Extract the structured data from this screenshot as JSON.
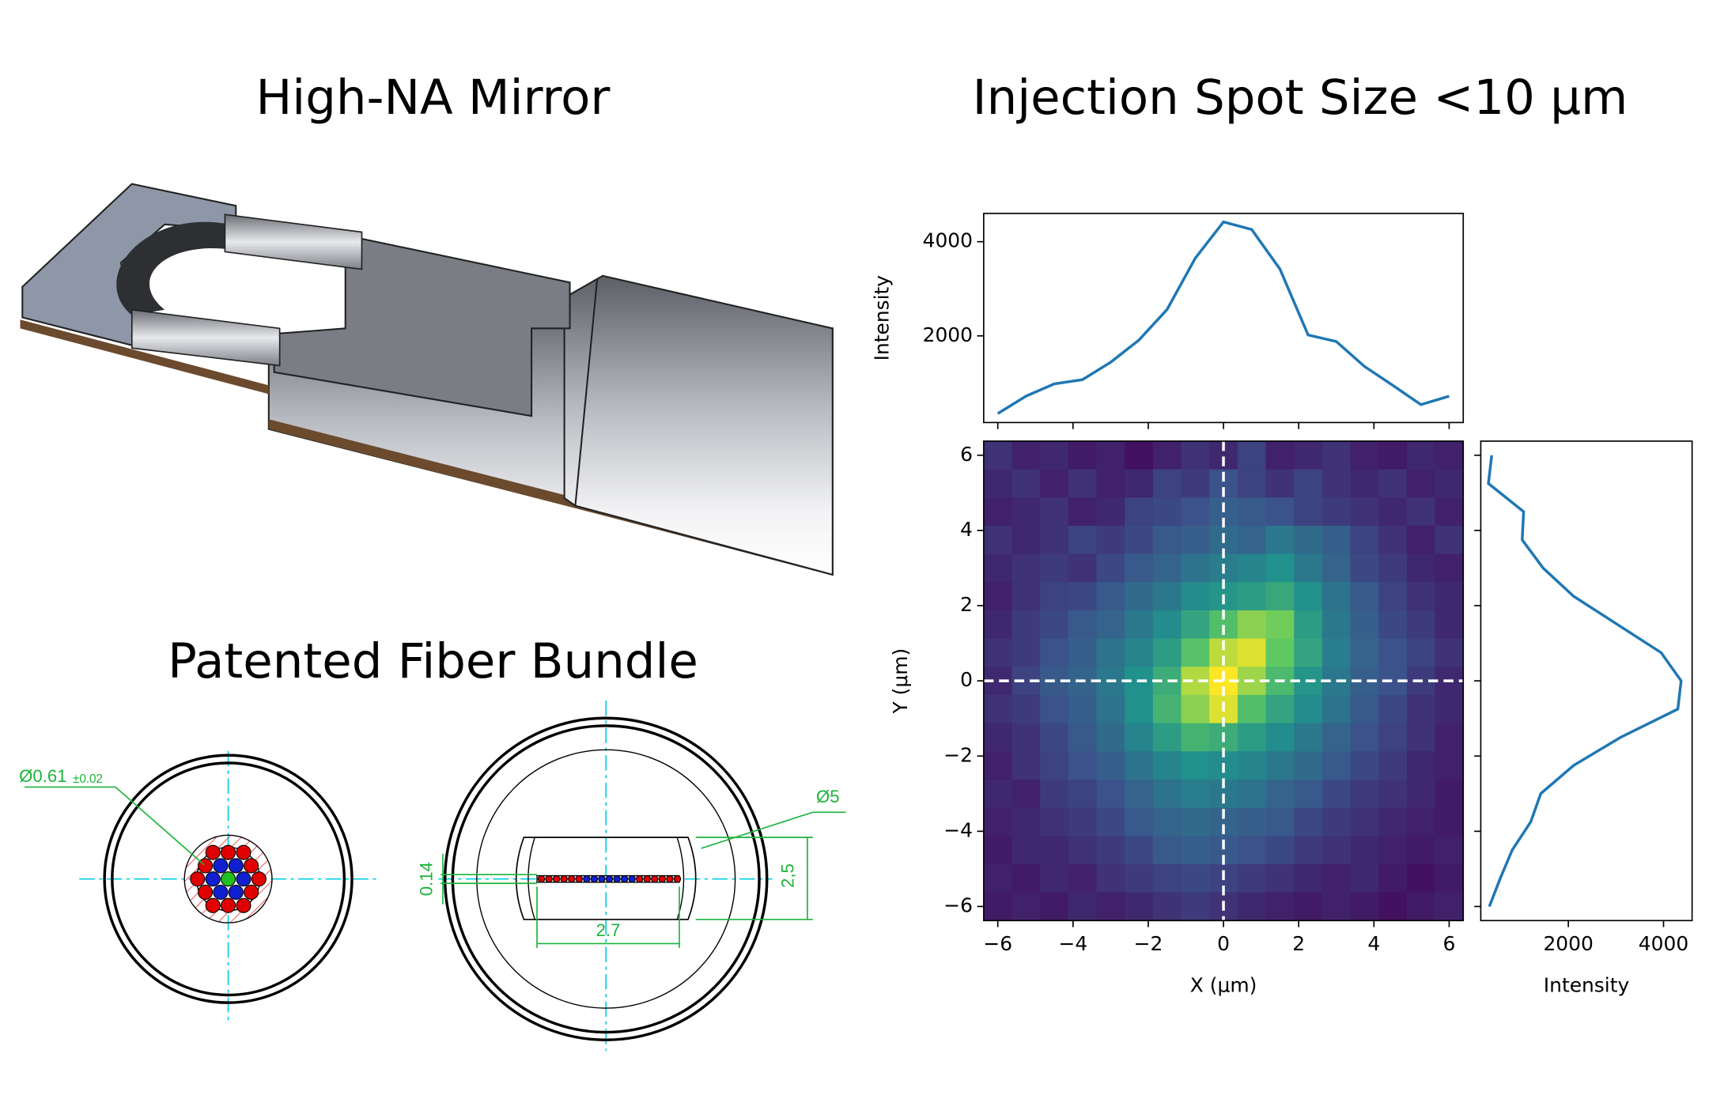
{
  "figure": {
    "titles": [
      "High-NA Mirror",
      "Injection Spot Size <10 μm",
      "Patented Fiber Bundle"
    ],
    "drawing_labels": {
      "diameter_small": "Ø0.61",
      "tolerance": "±0.02",
      "diameter_large": "Ø5",
      "slot_height": "0.14",
      "height": "2,5",
      "width": "2.7"
    }
  },
  "chart_data": [
    {
      "type": "line",
      "ylabel": "Intensity",
      "x": [
        -6,
        -5.25,
        -4.5,
        -3.75,
        -3,
        -2.25,
        -1.5,
        -0.75,
        0,
        0.75,
        1.5,
        2.25,
        3,
        3.75,
        4.5,
        5.25,
        6
      ],
      "values": [
        350,
        720,
        980,
        1070,
        1440,
        1910,
        2560,
        3650,
        4420,
        4260,
        3420,
        2020,
        1880,
        1350,
        950,
        540,
        720
      ],
      "color": "#1f77b4",
      "xlim": [
        -6.375,
        6.375
      ],
      "ylim": [
        160,
        4600
      ],
      "xticks": [
        -6,
        -4,
        -2,
        0,
        2,
        4,
        6
      ],
      "xtick_labels": false,
      "yticks": [
        2000,
        4000
      ]
    },
    {
      "type": "heatmap",
      "xlabel": "X (μm)",
      "ylabel": "Y (μm)",
      "x": [
        -6,
        -5.25,
        -4.5,
        -3.75,
        -3,
        -2.25,
        -1.5,
        -0.75,
        0,
        0.75,
        1.5,
        2.25,
        3,
        3.75,
        4.5,
        5.25,
        6
      ],
      "y": [
        6,
        5.25,
        4.5,
        3.75,
        3,
        2.25,
        1.5,
        0.75,
        0,
        -0.75,
        -1.5,
        -2.25,
        -3,
        -3.75,
        -4.5,
        -5.25,
        -6
      ],
      "values": [
        [
          15,
          10,
          12,
          8,
          10,
          5,
          10,
          15,
          12,
          20,
          10,
          12,
          15,
          10,
          8,
          12,
          10
        ],
        [
          12,
          15,
          10,
          15,
          10,
          12,
          20,
          18,
          25,
          20,
          15,
          20,
          15,
          12,
          15,
          10,
          12
        ],
        [
          10,
          12,
          15,
          10,
          12,
          20,
          22,
          25,
          30,
          28,
          25,
          20,
          18,
          15,
          12,
          15,
          10
        ],
        [
          15,
          12,
          15,
          20,
          18,
          22,
          28,
          30,
          35,
          32,
          40,
          35,
          30,
          20,
          15,
          10,
          15
        ],
        [
          12,
          15,
          18,
          15,
          22,
          28,
          32,
          38,
          42,
          45,
          50,
          40,
          32,
          22,
          18,
          12,
          10
        ],
        [
          10,
          15,
          20,
          22,
          28,
          35,
          40,
          48,
          52,
          55,
          60,
          50,
          38,
          28,
          20,
          15,
          12
        ],
        [
          12,
          18,
          22,
          28,
          32,
          40,
          48,
          58,
          70,
          82,
          78,
          55,
          40,
          30,
          22,
          18,
          12
        ],
        [
          15,
          18,
          25,
          30,
          38,
          45,
          55,
          72,
          90,
          95,
          75,
          58,
          42,
          32,
          25,
          20,
          15
        ],
        [
          12,
          20,
          28,
          32,
          40,
          50,
          62,
          88,
          100,
          85,
          68,
          52,
          40,
          30,
          25,
          18,
          12
        ],
        [
          15,
          18,
          25,
          30,
          38,
          50,
          65,
          82,
          95,
          70,
          58,
          48,
          38,
          28,
          22,
          15,
          12
        ],
        [
          12,
          15,
          22,
          28,
          35,
          45,
          55,
          65,
          62,
          55,
          48,
          40,
          32,
          25,
          20,
          15,
          10
        ],
        [
          10,
          15,
          20,
          25,
          30,
          38,
          45,
          50,
          48,
          45,
          40,
          35,
          28,
          22,
          18,
          12,
          10
        ],
        [
          12,
          10,
          18,
          20,
          25,
          32,
          38,
          42,
          40,
          38,
          32,
          28,
          22,
          18,
          15,
          12,
          8
        ],
        [
          10,
          12,
          15,
          18,
          22,
          28,
          32,
          35,
          32,
          30,
          28,
          22,
          18,
          15,
          12,
          10,
          8
        ],
        [
          8,
          12,
          12,
          15,
          18,
          22,
          28,
          30,
          28,
          25,
          22,
          18,
          15,
          12,
          10,
          8,
          10
        ],
        [
          10,
          8,
          12,
          10,
          15,
          18,
          20,
          22,
          20,
          18,
          15,
          12,
          10,
          12,
          8,
          5,
          8
        ],
        [
          8,
          10,
          8,
          12,
          10,
          12,
          15,
          18,
          15,
          12,
          10,
          8,
          10,
          8,
          5,
          8,
          10
        ]
      ],
      "colormap": "viridis",
      "vmin": 0,
      "vmax": 100,
      "crosshair": {
        "x": 0,
        "y": 0,
        "color": "#ffffff"
      },
      "xlim": [
        -6.375,
        6.375
      ],
      "ylim": [
        -6.375,
        6.375
      ],
      "xticks": [
        {
          "value": -6,
          "label": "−6"
        },
        {
          "value": -4,
          "label": "−4"
        },
        {
          "value": -2,
          "label": "−2"
        },
        0,
        2,
        4,
        6
      ],
      "yticks": [
        {
          "value": -6,
          "label": "−6"
        },
        {
          "value": -4,
          "label": "−4"
        },
        {
          "value": -2,
          "label": "−2"
        },
        0,
        2,
        4,
        6
      ]
    },
    {
      "type": "line",
      "orientation": "horizontal",
      "xlabel": "Intensity",
      "y": [
        6,
        5.25,
        4.5,
        3.75,
        3,
        2.25,
        1.5,
        0.75,
        0,
        -0.75,
        -1.5,
        -2.25,
        -3,
        -3.75,
        -4.5,
        -5.25,
        -6
      ],
      "values": [
        390,
        320,
        1060,
        1030,
        1470,
        2110,
        3030,
        3950,
        4370,
        4300,
        3100,
        2110,
        1420,
        1210,
        820,
        570,
        340
      ],
      "color": "#1f77b4",
      "xlim": [
        160,
        4600
      ],
      "ylim": [
        -6.375,
        6.375
      ],
      "xticks": [
        2000,
        4000
      ],
      "yticks": [
        -6,
        -4,
        -2,
        0,
        2,
        4,
        6
      ],
      "ytick_labels": false
    }
  ]
}
